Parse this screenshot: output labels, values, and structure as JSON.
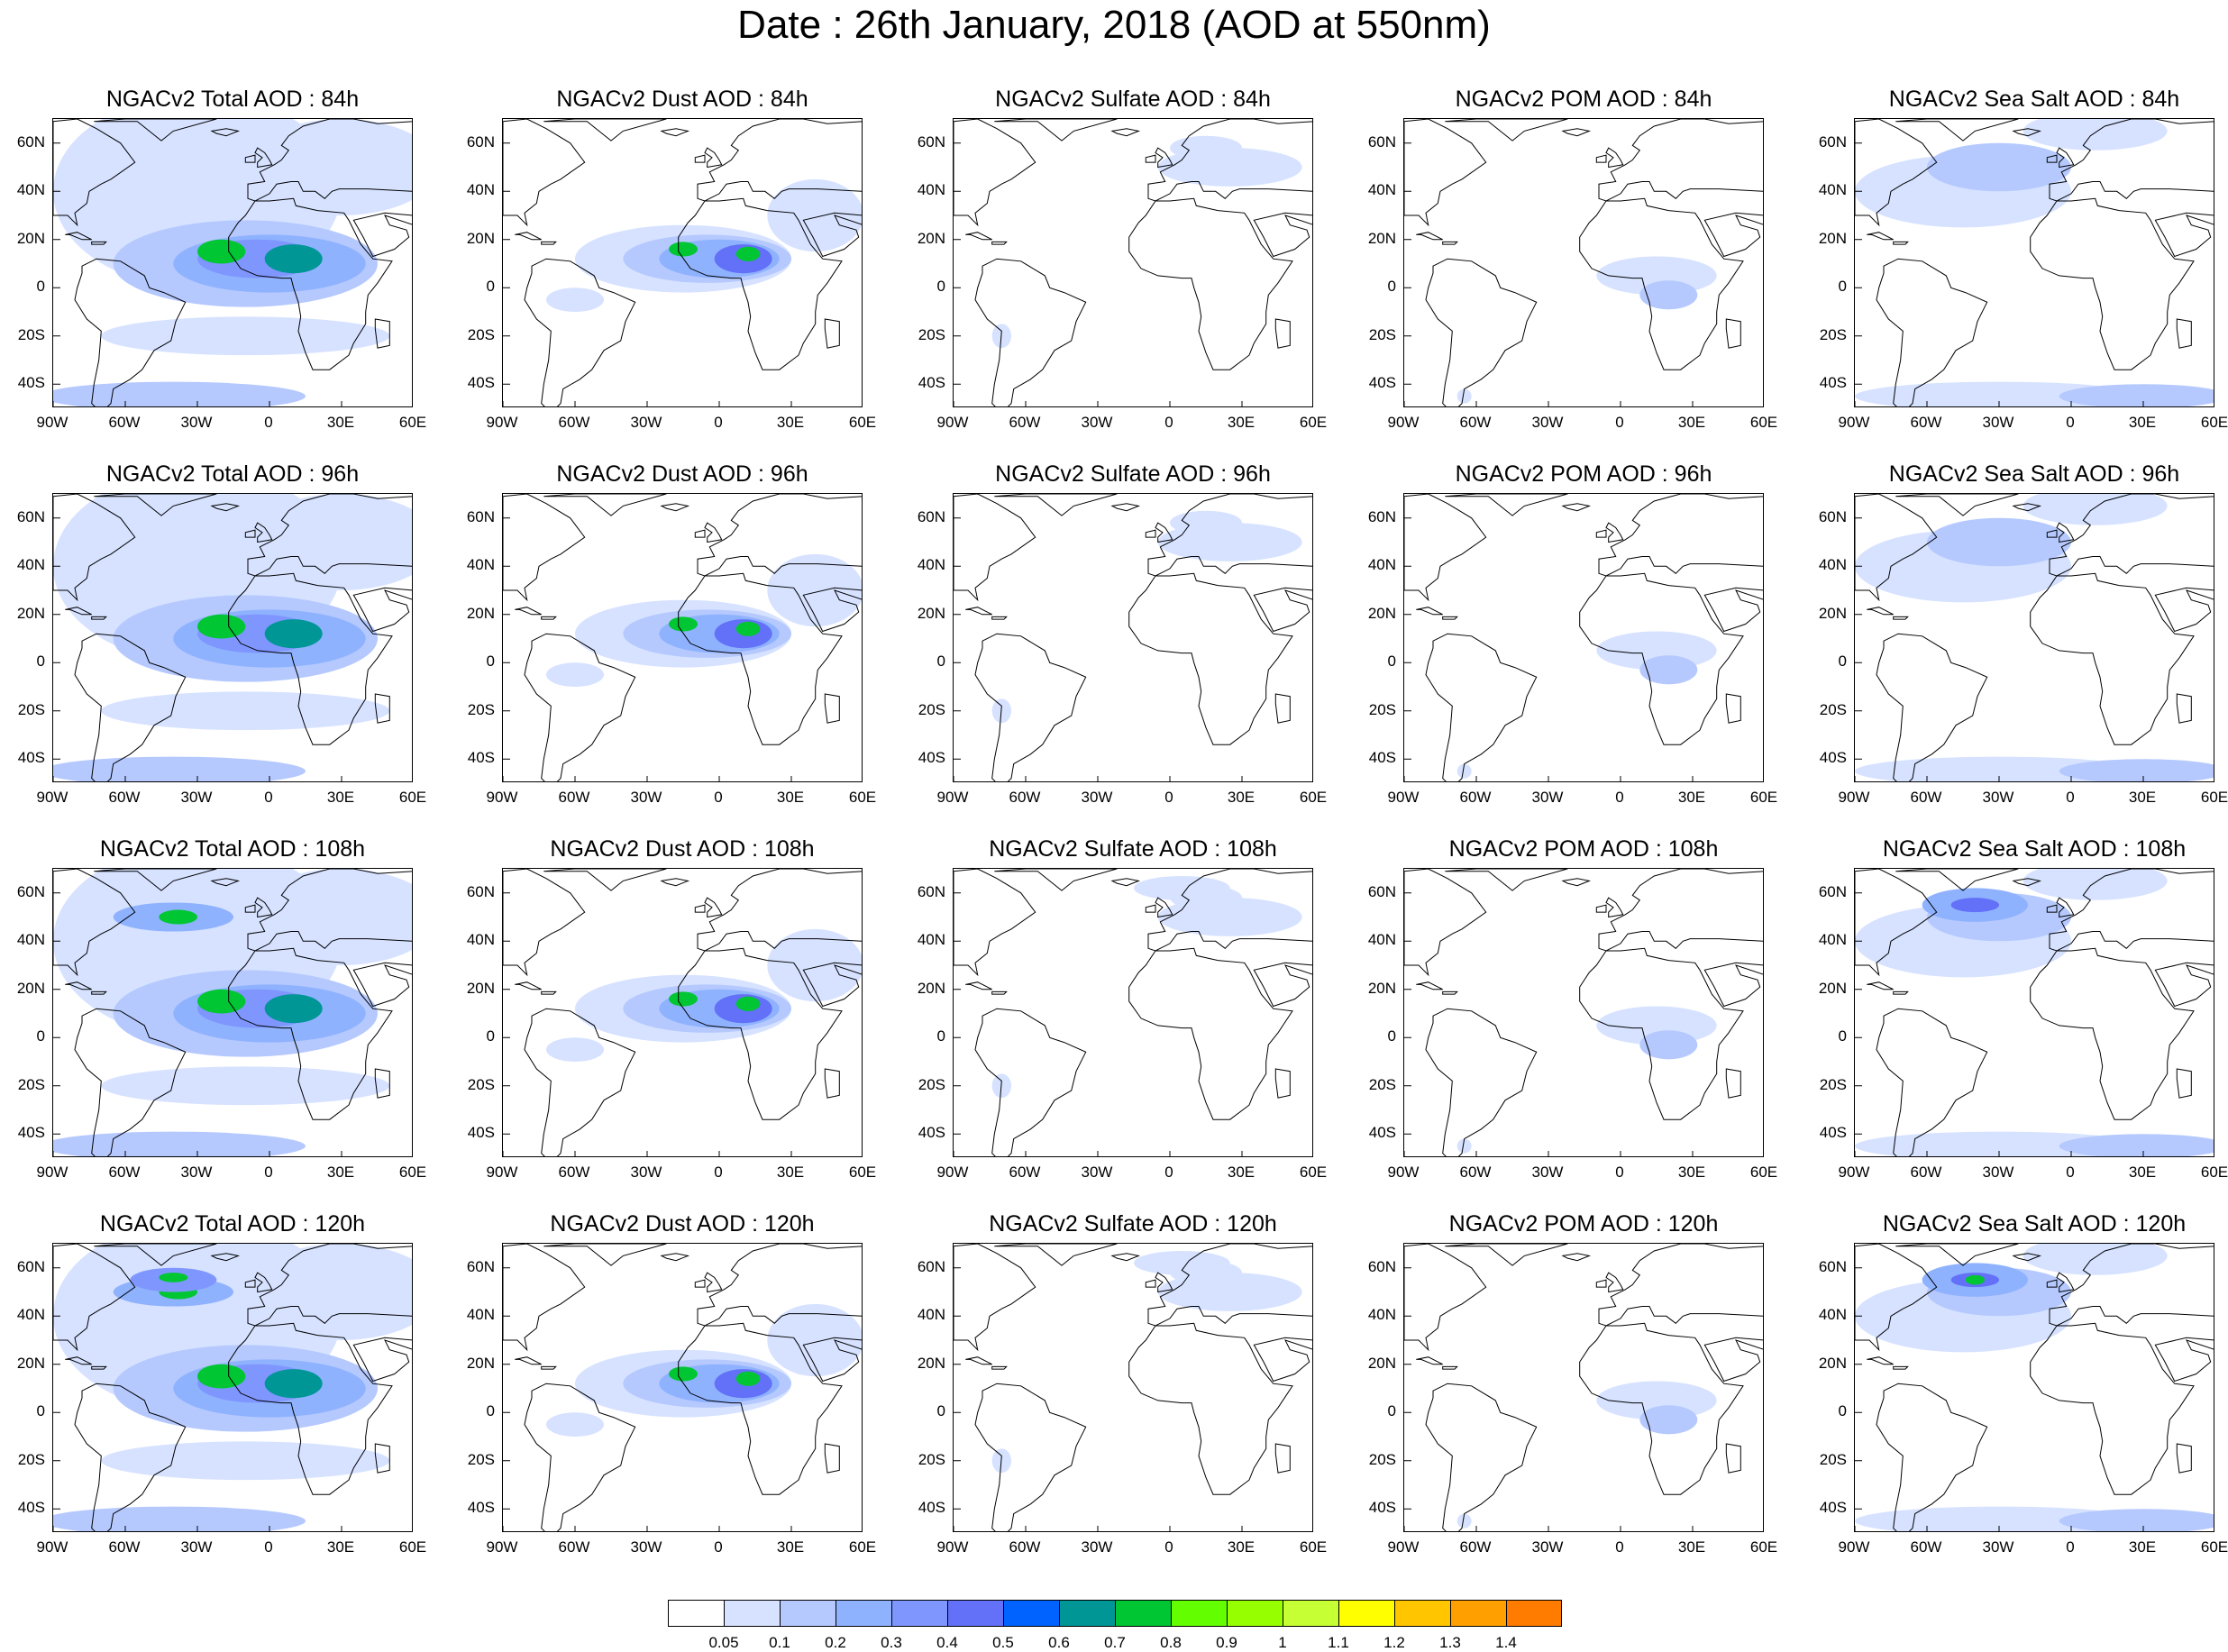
{
  "title": "Date : 26th January, 2018 (AOD at 550nm)",
  "panel_titles": [
    [
      "NGACv2 Total AOD : 84h",
      "NGACv2 Dust AOD : 84h",
      "NGACv2 Sulfate AOD : 84h",
      "NGACv2 POM AOD : 84h",
      "NGACv2 Sea Salt AOD : 84h"
    ],
    [
      "NGACv2 Total AOD : 96h",
      "NGACv2 Dust AOD : 96h",
      "NGACv2 Sulfate AOD : 96h",
      "NGACv2 POM AOD : 96h",
      "NGACv2 Sea Salt AOD : 96h"
    ],
    [
      "NGACv2 Total AOD : 108h",
      "NGACv2 Dust AOD : 108h",
      "NGACv2 Sulfate AOD : 108h",
      "NGACv2 POM AOD : 108h",
      "NGACv2 Sea Salt AOD : 108h"
    ],
    [
      "NGACv2 Total AOD : 120h",
      "NGACv2 Dust AOD : 120h",
      "NGACv2 Sulfate AOD : 120h",
      "NGACv2 POM AOD : 120h",
      "NGACv2 Sea Salt  AOD : 120h"
    ]
  ],
  "lat_labels": [
    "60N",
    "40N",
    "20N",
    "0",
    "20S",
    "40S"
  ],
  "lon_labels": [
    "90W",
    "60W",
    "30W",
    "0",
    "30E",
    "60E"
  ],
  "colorbar": {
    "labels": [
      "0.05",
      "0.1",
      "0.2",
      "0.3",
      "0.4",
      "0.5",
      "0.6",
      "0.7",
      "0.8",
      "0.9",
      "1",
      "1.1",
      "1.2",
      "1.3",
      "1.4"
    ],
    "colors": [
      "#ffffff",
      "#d6e2ff",
      "#b5c9ff",
      "#8fb2ff",
      "#7f96ff",
      "#6370f8",
      "#0063ff",
      "#009696",
      "#00c633",
      "#63ff00",
      "#96ff00",
      "#c6ff33",
      "#ffff00",
      "#ffc600",
      "#ffa000",
      "#ff7c00",
      "#ff1900"
    ]
  },
  "map_extent": {
    "lon_range": [
      -90,
      60
    ],
    "lat_range": [
      -50,
      70
    ]
  },
  "chart_data": {
    "type": "heatmap",
    "title": "Date : 26th January, 2018 (AOD at 550nm)",
    "rows_forecast_hour": [
      "84h",
      "96h",
      "108h",
      "120h"
    ],
    "columns_species": [
      "Total",
      "Dust",
      "Sulfate",
      "POM",
      "Sea Salt"
    ],
    "xlim": [
      -90,
      60
    ],
    "ylim": [
      -50,
      70
    ]
  }
}
